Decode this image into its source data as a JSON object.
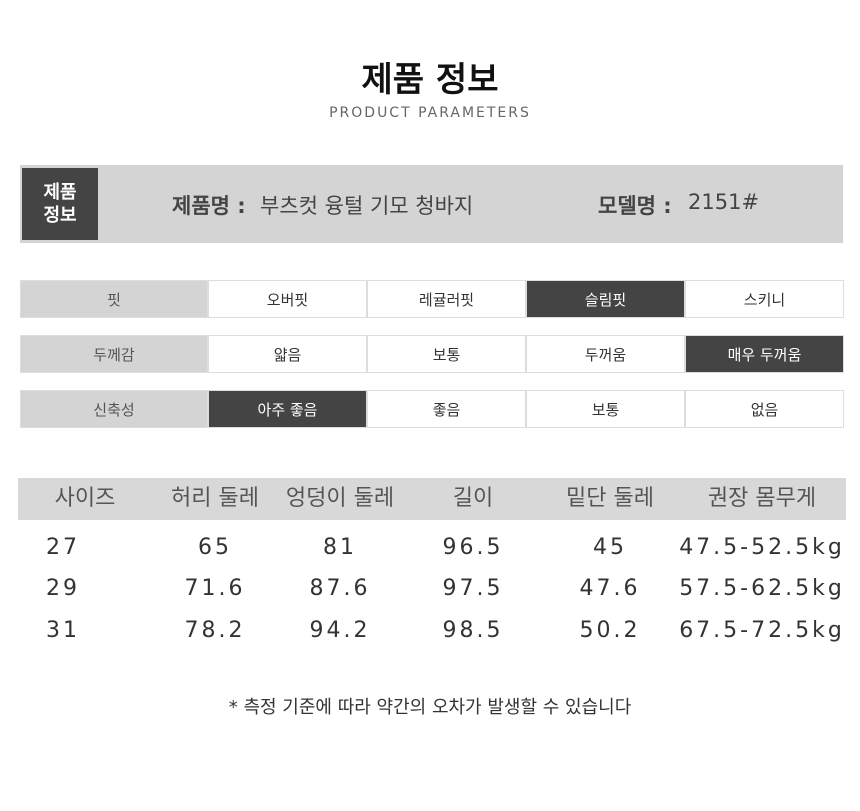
{
  "header": {
    "title": "제품 정보",
    "subtitle": "PRODUCT PARAMETERS"
  },
  "info": {
    "label": "제품 정보",
    "name_label": "제품명 :",
    "name_value": "부츠컷 융털 기모 청바지",
    "model_label": "모델명 :",
    "model_value": "2151#"
  },
  "attributes": [
    {
      "label": "핏",
      "options": [
        "오버핏",
        "레귤러핏",
        "슬림핏",
        "스키니"
      ],
      "selected": 2
    },
    {
      "label": "두께감",
      "options": [
        "얇음",
        "보통",
        "두꺼움",
        "매우 두꺼움"
      ],
      "selected": 3
    },
    {
      "label": "신축성",
      "options": [
        "아주 좋음",
        "좋음",
        "보통",
        "없음"
      ],
      "selected": 0
    }
  ],
  "size_table": {
    "headers": [
      "사이즈",
      "허리 둘레",
      "엉덩이 둘레",
      "길이",
      "밑단 둘레",
      "권장 몸무게"
    ],
    "rows": [
      [
        "27",
        "65",
        "81",
        "96.5",
        "45",
        "47.5-52.5kg"
      ],
      [
        "29",
        "71.6",
        "87.6",
        "97.5",
        "47.6",
        "57.5-62.5kg"
      ],
      [
        "31",
        "78.2",
        "94.2",
        "98.5",
        "50.2",
        "67.5-72.5kg"
      ]
    ]
  },
  "footnote": "* 측정 기준에 따라 약간의 오차가 발생할 수 있습니다"
}
